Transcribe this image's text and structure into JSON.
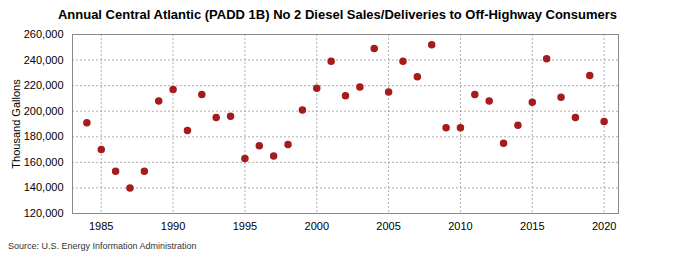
{
  "chart_data": {
    "type": "scatter",
    "title": "Annual Central Atlantic (PADD 1B) No 2 Diesel Sales/Deliveries to Off-Highway Consumers",
    "y_label": "Thousand Gallons",
    "source": "Source: U.S. Energy Information Administration",
    "x": [
      1984,
      1985,
      1986,
      1987,
      1988,
      1989,
      1990,
      1991,
      1992,
      1993,
      1994,
      1995,
      1996,
      1997,
      1998,
      1999,
      2000,
      2001,
      2002,
      2003,
      2004,
      2005,
      2006,
      2007,
      2008,
      2009,
      2010,
      2011,
      2012,
      2013,
      2014,
      2015,
      2016,
      2017,
      2018,
      2019,
      2020
    ],
    "values": [
      191000,
      170000,
      153000,
      140000,
      153000,
      208000,
      217000,
      185000,
      213000,
      195000,
      196000,
      163000,
      173000,
      165000,
      174000,
      201000,
      218000,
      239000,
      212000,
      219000,
      249000,
      215000,
      239000,
      227000,
      252000,
      187000,
      187000,
      213000,
      208000,
      175000,
      189000,
      207000,
      241000,
      211000,
      195000,
      228000,
      192000
    ],
    "color": "#a51c1c",
    "marker": "circle",
    "xlim": [
      1983,
      2021
    ],
    "xticks": [
      1985,
      1990,
      1995,
      2000,
      2005,
      2010,
      2015,
      2020
    ],
    "ylim": [
      120000,
      260000
    ],
    "yticks": [
      {
        "value": 120000,
        "label": "120,000"
      },
      {
        "value": 140000,
        "label": "140,000"
      },
      {
        "value": 160000,
        "label": "160,000"
      },
      {
        "value": 180000,
        "label": "180,000"
      },
      {
        "value": 200000,
        "label": "200,000"
      },
      {
        "value": 220000,
        "label": "220,000"
      },
      {
        "value": 240000,
        "label": "240,000"
      },
      {
        "value": 260000,
        "label": "260,000"
      }
    ],
    "grid": true
  }
}
